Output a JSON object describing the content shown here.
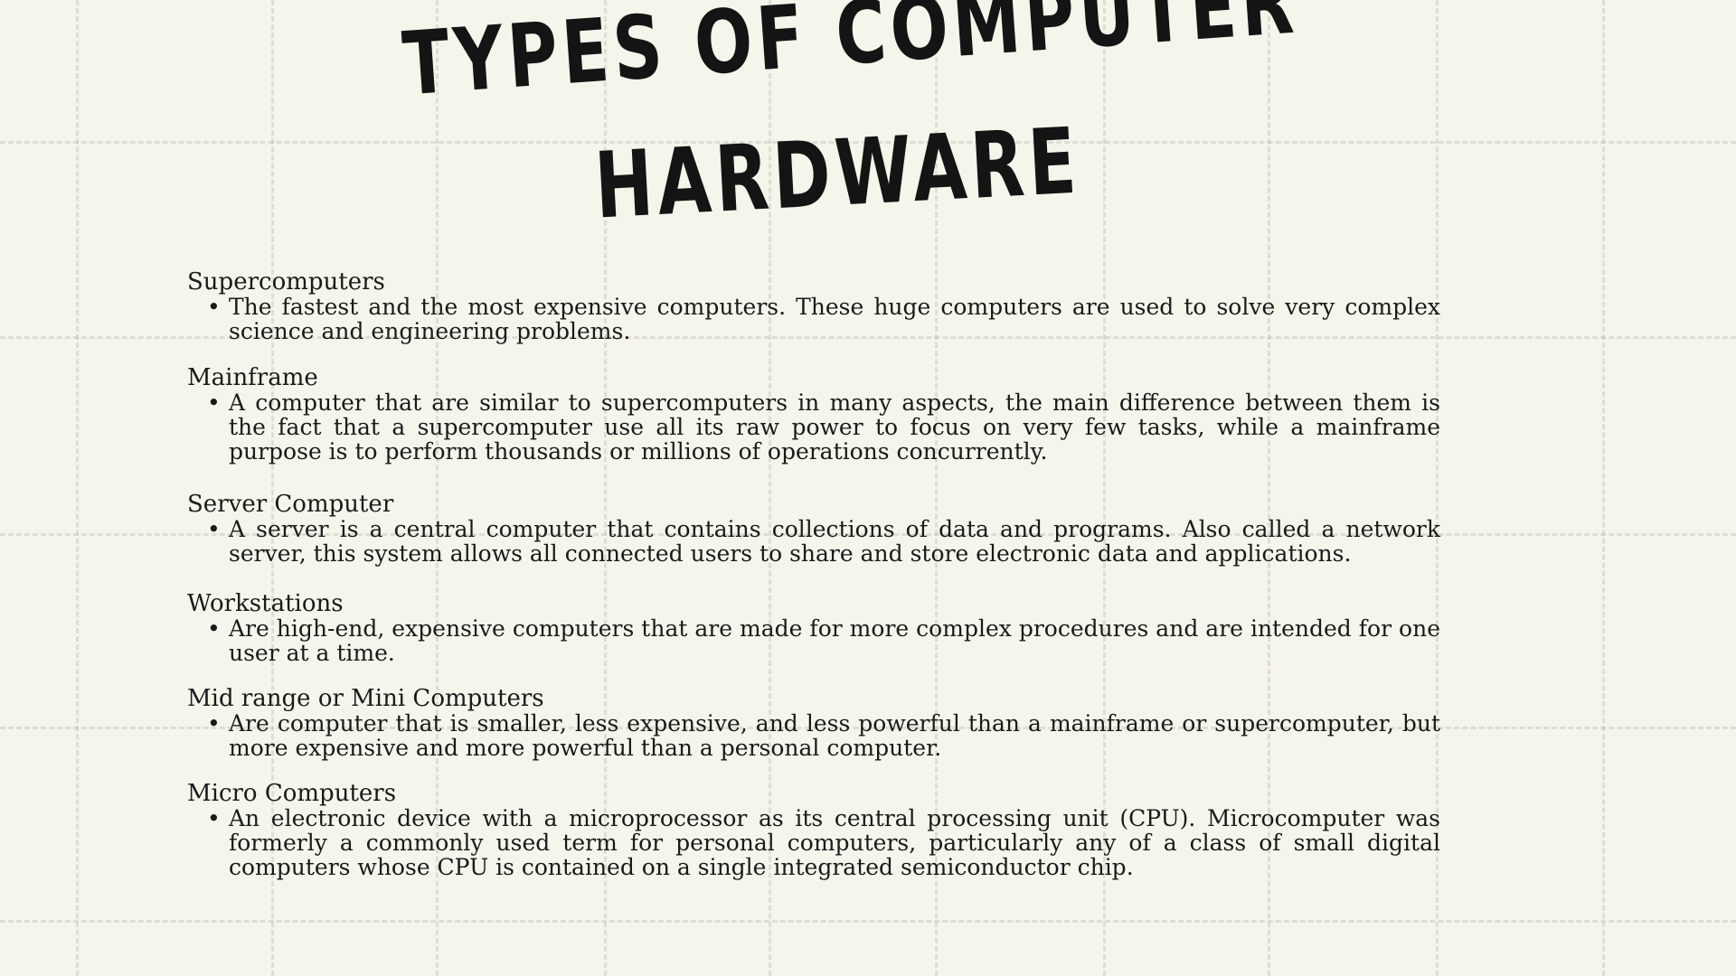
{
  "title": {
    "line1": "Types of Computer",
    "line2": "Hardware"
  },
  "sections": [
    {
      "heading": "Supercomputers",
      "text": "The fastest and the most expensive computers. These huge computers are used to solve very complex science and engineering problems."
    },
    {
      "heading": "Mainframe",
      "text": "A computer that are similar to supercomputers in many aspects, the main difference between them is the fact that a supercomputer use all its raw power to focus on very few tasks, while a mainframe purpose is to perform thousands or millions of operations concurrently."
    },
    {
      "heading": "Server Computer",
      "text": "A server is a central computer that contains collections of data and programs. Also called a network server, this system allows all connected users to share and store electronic data and applications."
    },
    {
      "heading": "Workstations",
      "text": "Are high-end, expensive computers that are made for more complex procedures and are intended for one user at a time."
    },
    {
      "heading": "Mid range or Mini Computers",
      "text": "Are computer that is smaller, less expensive, and less powerful than a mainframe or supercomputer, but more expensive and more powerful than a personal computer."
    },
    {
      "heading": "Micro Computers",
      "text": "An electronic device with a microprocessor as its central processing unit (CPU). Microcomputer was formerly a commonly used term for personal computers, particularly any of a class of small digital computers whose CPU is contained on a single integrated semiconductor chip."
    }
  ]
}
